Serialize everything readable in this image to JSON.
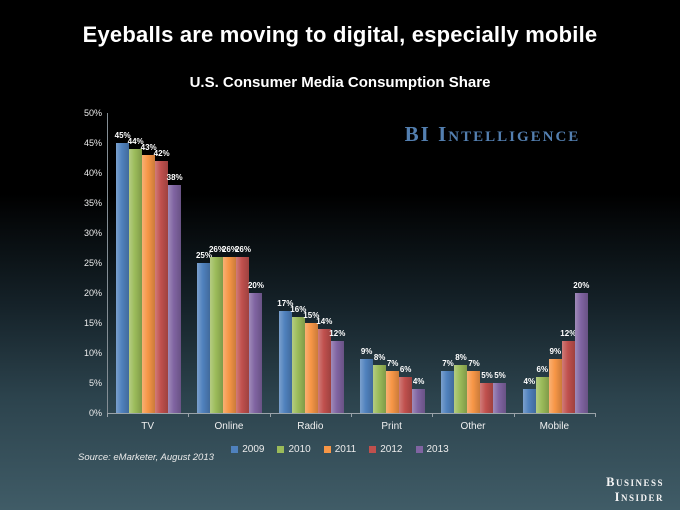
{
  "title": "Eyeballs are moving to digital, especially mobile",
  "subtitle": "U.S. Consumer Media Consumption Share",
  "brand": {
    "bi_intelligence": "BI Intelligence",
    "bi_intelligence_color": "#537fb0",
    "business_insider_line1": "Business",
    "business_insider_line2": "Insider"
  },
  "source_note": "Source: eMarketer, August 2013",
  "chart_data": {
    "type": "bar",
    "categories": [
      "TV",
      "Online",
      "Radio",
      "Print",
      "Other",
      "Mobile"
    ],
    "series": [
      {
        "name": "2009",
        "color": "#4f81bd",
        "values": [
          45,
          25,
          17,
          9,
          7,
          4
        ]
      },
      {
        "name": "2010",
        "color": "#9bbb59",
        "values": [
          44,
          26,
          16,
          8,
          8,
          6
        ]
      },
      {
        "name": "2011",
        "color": "#f79646",
        "values": [
          43,
          26,
          15,
          7,
          7,
          9
        ]
      },
      {
        "name": "2012",
        "color": "#c0504d",
        "values": [
          42,
          26,
          14,
          6,
          5,
          12
        ]
      },
      {
        "name": "2013",
        "color": "#8064a2",
        "values": [
          38,
          20,
          12,
          4,
          5,
          20
        ]
      }
    ],
    "title": "U.S. Consumer Media Consumption Share",
    "xlabel": "",
    "ylabel": "",
    "ylim": [
      0,
      50
    ],
    "ytick_step": 5,
    "ytick_suffix": "%",
    "value_label_suffix": "%",
    "grid": false,
    "legend_position": "bottom",
    "value_labels": true
  }
}
